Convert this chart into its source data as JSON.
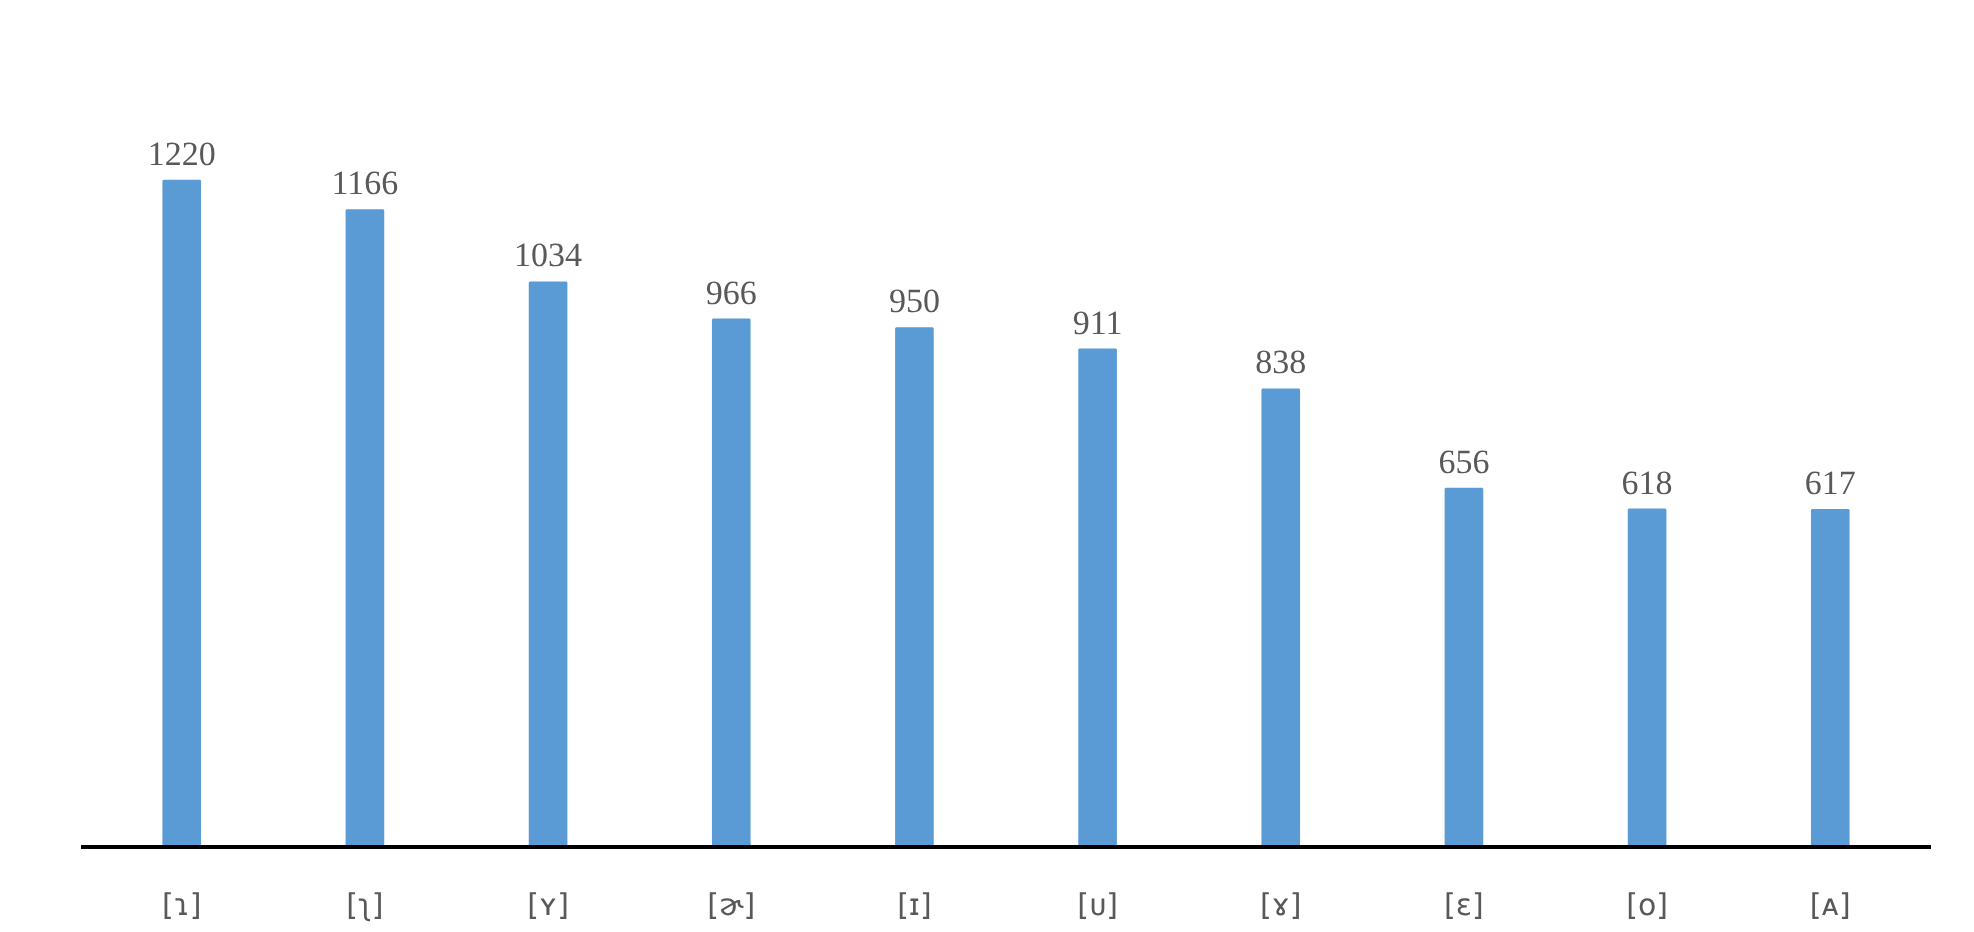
{
  "chart_data": {
    "type": "bar",
    "categories": [
      "[ɿ]",
      "[ʅ]",
      "[ʏ]",
      "[ɚ]",
      "[ɪ]",
      "[ᴜ]",
      "[ɤ]",
      "[ɛ]",
      "[ᴏ]",
      "[ᴀ]"
    ],
    "values": [
      1220,
      1166,
      1034,
      966,
      950,
      911,
      838,
      656,
      618,
      617
    ],
    "color": "#5b9bd5",
    "data_labels": true
  }
}
